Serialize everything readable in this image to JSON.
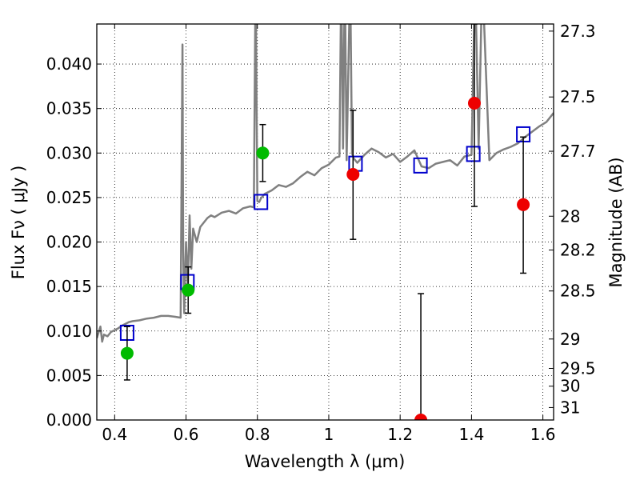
{
  "chart_data": {
    "type": "scatter",
    "xlabel": "Wavelength  λ (μm)",
    "ylabel": "Flux  Fν  ( μJy )",
    "ylabel_right": "Magnitude (AB)",
    "xlim": [
      0.35,
      1.63
    ],
    "ylim": [
      0.0,
      0.0445
    ],
    "grid": true,
    "x_ticks": [
      0.4,
      0.6,
      0.8,
      1.0,
      1.2,
      1.4,
      1.6
    ],
    "x_tick_labels": [
      "0.4",
      "0.6",
      "0.8",
      "1",
      "1.2",
      "1.4",
      "1.6"
    ],
    "y_ticks": [
      0.0,
      0.005,
      0.01,
      0.015,
      0.02,
      0.025,
      0.03,
      0.035,
      0.04
    ],
    "y_tick_labels": [
      "0.000",
      "0.005",
      "0.010",
      "0.015",
      "0.020",
      "0.025",
      "0.030",
      "0.035",
      "0.040"
    ],
    "right_ticks": [
      {
        "label": "27.3",
        "flux": 0.0437
      },
      {
        "label": "27.5",
        "flux": 0.0363
      },
      {
        "label": "27.7",
        "flux": 0.0302
      },
      {
        "label": "28",
        "flux": 0.0229
      },
      {
        "label": "28.2",
        "flux": 0.0191
      },
      {
        "label": "28.5",
        "flux": 0.0145
      },
      {
        "label": "29",
        "flux": 0.0091
      },
      {
        "label": "29.5",
        "flux": 0.0058
      },
      {
        "label": "30",
        "flux": 0.0038
      },
      {
        "label": "31",
        "flux": 0.0014
      }
    ],
    "colors": {
      "spectrum": "#808080",
      "model": "#0000cc",
      "green": "#00bb00",
      "red": "#ee0000",
      "errorbar": "#000000"
    },
    "series": [
      {
        "kind": "line",
        "x": [
          0.35,
          0.36,
          0.365,
          0.37,
          0.38,
          0.39,
          0.4,
          0.41,
          0.42,
          0.43,
          0.44,
          0.45,
          0.47,
          0.49,
          0.51,
          0.53,
          0.55,
          0.57,
          0.585,
          0.59,
          0.592,
          0.595,
          0.6,
          0.605,
          0.61,
          0.615,
          0.62,
          0.63,
          0.64,
          0.65,
          0.66,
          0.67,
          0.68,
          0.7,
          0.72,
          0.74,
          0.76,
          0.78,
          0.79,
          0.795,
          0.8,
          0.805,
          0.81,
          0.82,
          0.84,
          0.86,
          0.88,
          0.9,
          0.92,
          0.94,
          0.96,
          0.98,
          1.0,
          1.02,
          1.03,
          1.035,
          1.04,
          1.045,
          1.05,
          1.06,
          1.065,
          1.07,
          1.08,
          1.1,
          1.12,
          1.14,
          1.16,
          1.18,
          1.2,
          1.22,
          1.24,
          1.26,
          1.28,
          1.3,
          1.32,
          1.34,
          1.36,
          1.38,
          1.4,
          1.41,
          1.42,
          1.43,
          1.45,
          1.47,
          1.49,
          1.51,
          1.53,
          1.55,
          1.57,
          1.59,
          1.61,
          1.63
        ],
        "y": [
          0.0092,
          0.0105,
          0.0088,
          0.0096,
          0.0094,
          0.0099,
          0.0101,
          0.0103,
          0.0106,
          0.0108,
          0.011,
          0.0111,
          0.0112,
          0.0114,
          0.0115,
          0.0117,
          0.0117,
          0.0116,
          0.0115,
          0.0422,
          0.019,
          0.012,
          0.02,
          0.015,
          0.023,
          0.017,
          0.0215,
          0.02,
          0.0217,
          0.0222,
          0.0227,
          0.023,
          0.0228,
          0.0233,
          0.0235,
          0.0232,
          0.0238,
          0.024,
          0.0239,
          0.05,
          0.0246,
          0.0245,
          0.0249,
          0.0254,
          0.0258,
          0.0264,
          0.0262,
          0.0266,
          0.0273,
          0.0279,
          0.0275,
          0.0283,
          0.0287,
          0.0295,
          0.0296,
          0.05,
          0.0305,
          0.05,
          0.0292,
          0.05,
          0.03,
          0.0294,
          0.0289,
          0.0298,
          0.0305,
          0.0301,
          0.0295,
          0.0299,
          0.029,
          0.0296,
          0.0303,
          0.0285,
          0.0283,
          0.0288,
          0.029,
          0.0292,
          0.0286,
          0.0296,
          0.0298,
          0.05,
          0.0305,
          0.05,
          0.0292,
          0.03,
          0.0304,
          0.0307,
          0.0311,
          0.0318,
          0.0324,
          0.033,
          0.0335,
          0.0345
        ]
      },
      {
        "kind": "squares",
        "x": [
          0.435,
          0.604,
          0.81,
          1.075,
          1.257,
          1.405,
          1.545
        ],
        "y": [
          0.0098,
          0.0155,
          0.0245,
          0.0288,
          0.0286,
          0.0299,
          0.0321
        ]
      },
      {
        "kind": "points",
        "color": "green",
        "x": [
          0.435,
          0.606,
          0.815
        ],
        "y": [
          0.0075,
          0.0146,
          0.03
        ],
        "err_low": [
          0.0045,
          0.012,
          0.0268
        ],
        "err_high": [
          0.0105,
          0.0172,
          0.0332
        ]
      },
      {
        "kind": "points",
        "color": "red",
        "x": [
          1.068,
          1.258,
          1.408,
          1.545
        ],
        "y": [
          0.0276,
          0.0,
          0.0356,
          0.0242
        ],
        "err_low": [
          0.0203,
          0.0,
          0.024,
          0.0165
        ],
        "err_high": [
          0.0348,
          0.0142,
          0.0445,
          0.0318
        ]
      }
    ]
  }
}
